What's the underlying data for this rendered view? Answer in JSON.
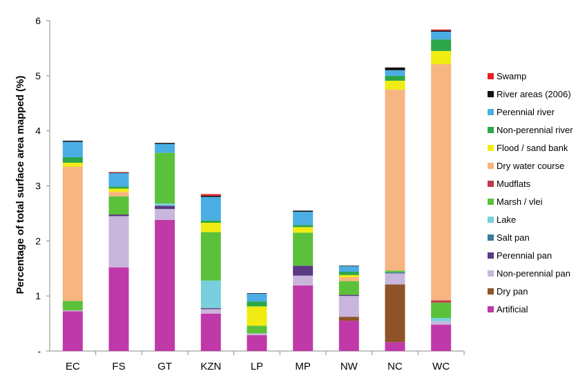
{
  "chart_data": {
    "type": "bar",
    "stacked": true,
    "title": "",
    "xlabel": "",
    "ylabel": "Percentage of total surface area mapped (%)",
    "ylim": [
      0,
      6
    ],
    "yticks": [
      "-",
      "1",
      "2",
      "3",
      "4",
      "5",
      "6"
    ],
    "categories": [
      "EC",
      "FS",
      "GT",
      "KZN",
      "LP",
      "MP",
      "NW",
      "NC",
      "WC"
    ],
    "legend_position": "right",
    "grid": false,
    "series": [
      {
        "name": "Artificial",
        "color": "#c039a8",
        "values": [
          0.72,
          1.52,
          2.38,
          0.68,
          0.29,
          1.19,
          0.55,
          0.16,
          0.48
        ]
      },
      {
        "name": "Dry pan",
        "color": "#8e5427",
        "values": [
          0,
          0,
          0,
          0,
          0,
          0,
          0.07,
          1.05,
          0
        ]
      },
      {
        "name": "Non-perennial pan",
        "color": "#c9b6dc",
        "values": [
          0.02,
          0.93,
          0.2,
          0.08,
          0.03,
          0.18,
          0.38,
          0.2,
          0.06
        ]
      },
      {
        "name": "Perennial pan",
        "color": "#5a3a82",
        "values": [
          0,
          0.03,
          0.06,
          0.02,
          0,
          0.18,
          0.02,
          0,
          0
        ]
      },
      {
        "name": "Salt pan",
        "color": "#3a7a9b",
        "values": [
          0,
          0,
          0,
          0,
          0,
          0,
          0,
          0.02,
          0
        ]
      },
      {
        "name": "Lake",
        "color": "#78d0dd",
        "values": [
          0,
          0,
          0.04,
          0.5,
          0,
          0,
          0,
          0,
          0.06
        ]
      },
      {
        "name": "Marsh / vlei",
        "color": "#5cc13a",
        "values": [
          0.17,
          0.33,
          0.92,
          0.88,
          0.14,
          0.6,
          0.25,
          0.03,
          0.28
        ]
      },
      {
        "name": "Mudflats",
        "color": "#c03a4a",
        "values": [
          0,
          0,
          0,
          0,
          0,
          0,
          0,
          0,
          0.04
        ]
      },
      {
        "name": "Dry water course",
        "color": "#f7b581",
        "values": [
          2.44,
          0.08,
          0,
          0,
          0,
          0,
          0.07,
          3.29,
          4.29
        ]
      },
      {
        "name": "Flood / sand bank",
        "color": "#f0ec12",
        "values": [
          0.07,
          0.06,
          0,
          0.17,
          0.35,
          0.1,
          0.04,
          0.16,
          0.24
        ]
      },
      {
        "name": "Non-perennial river",
        "color": "#2da64a",
        "values": [
          0.1,
          0.04,
          0,
          0.04,
          0.09,
          0.04,
          0.06,
          0.09,
          0.21
        ]
      },
      {
        "name": "Perennial river",
        "color": "#4aaee5",
        "values": [
          0.28,
          0.24,
          0.16,
          0.43,
          0.14,
          0.24,
          0.1,
          0.1,
          0.14
        ]
      },
      {
        "name": "River areas (2006)",
        "color": "#111111",
        "values": [
          0.02,
          0.01,
          0.02,
          0.02,
          0.01,
          0.02,
          0.01,
          0.05,
          0.02
        ]
      },
      {
        "name": "Swamp",
        "color": "#e32228",
        "values": [
          0,
          0.01,
          0,
          0.03,
          0,
          0,
          0,
          0,
          0.02
        ]
      }
    ]
  }
}
